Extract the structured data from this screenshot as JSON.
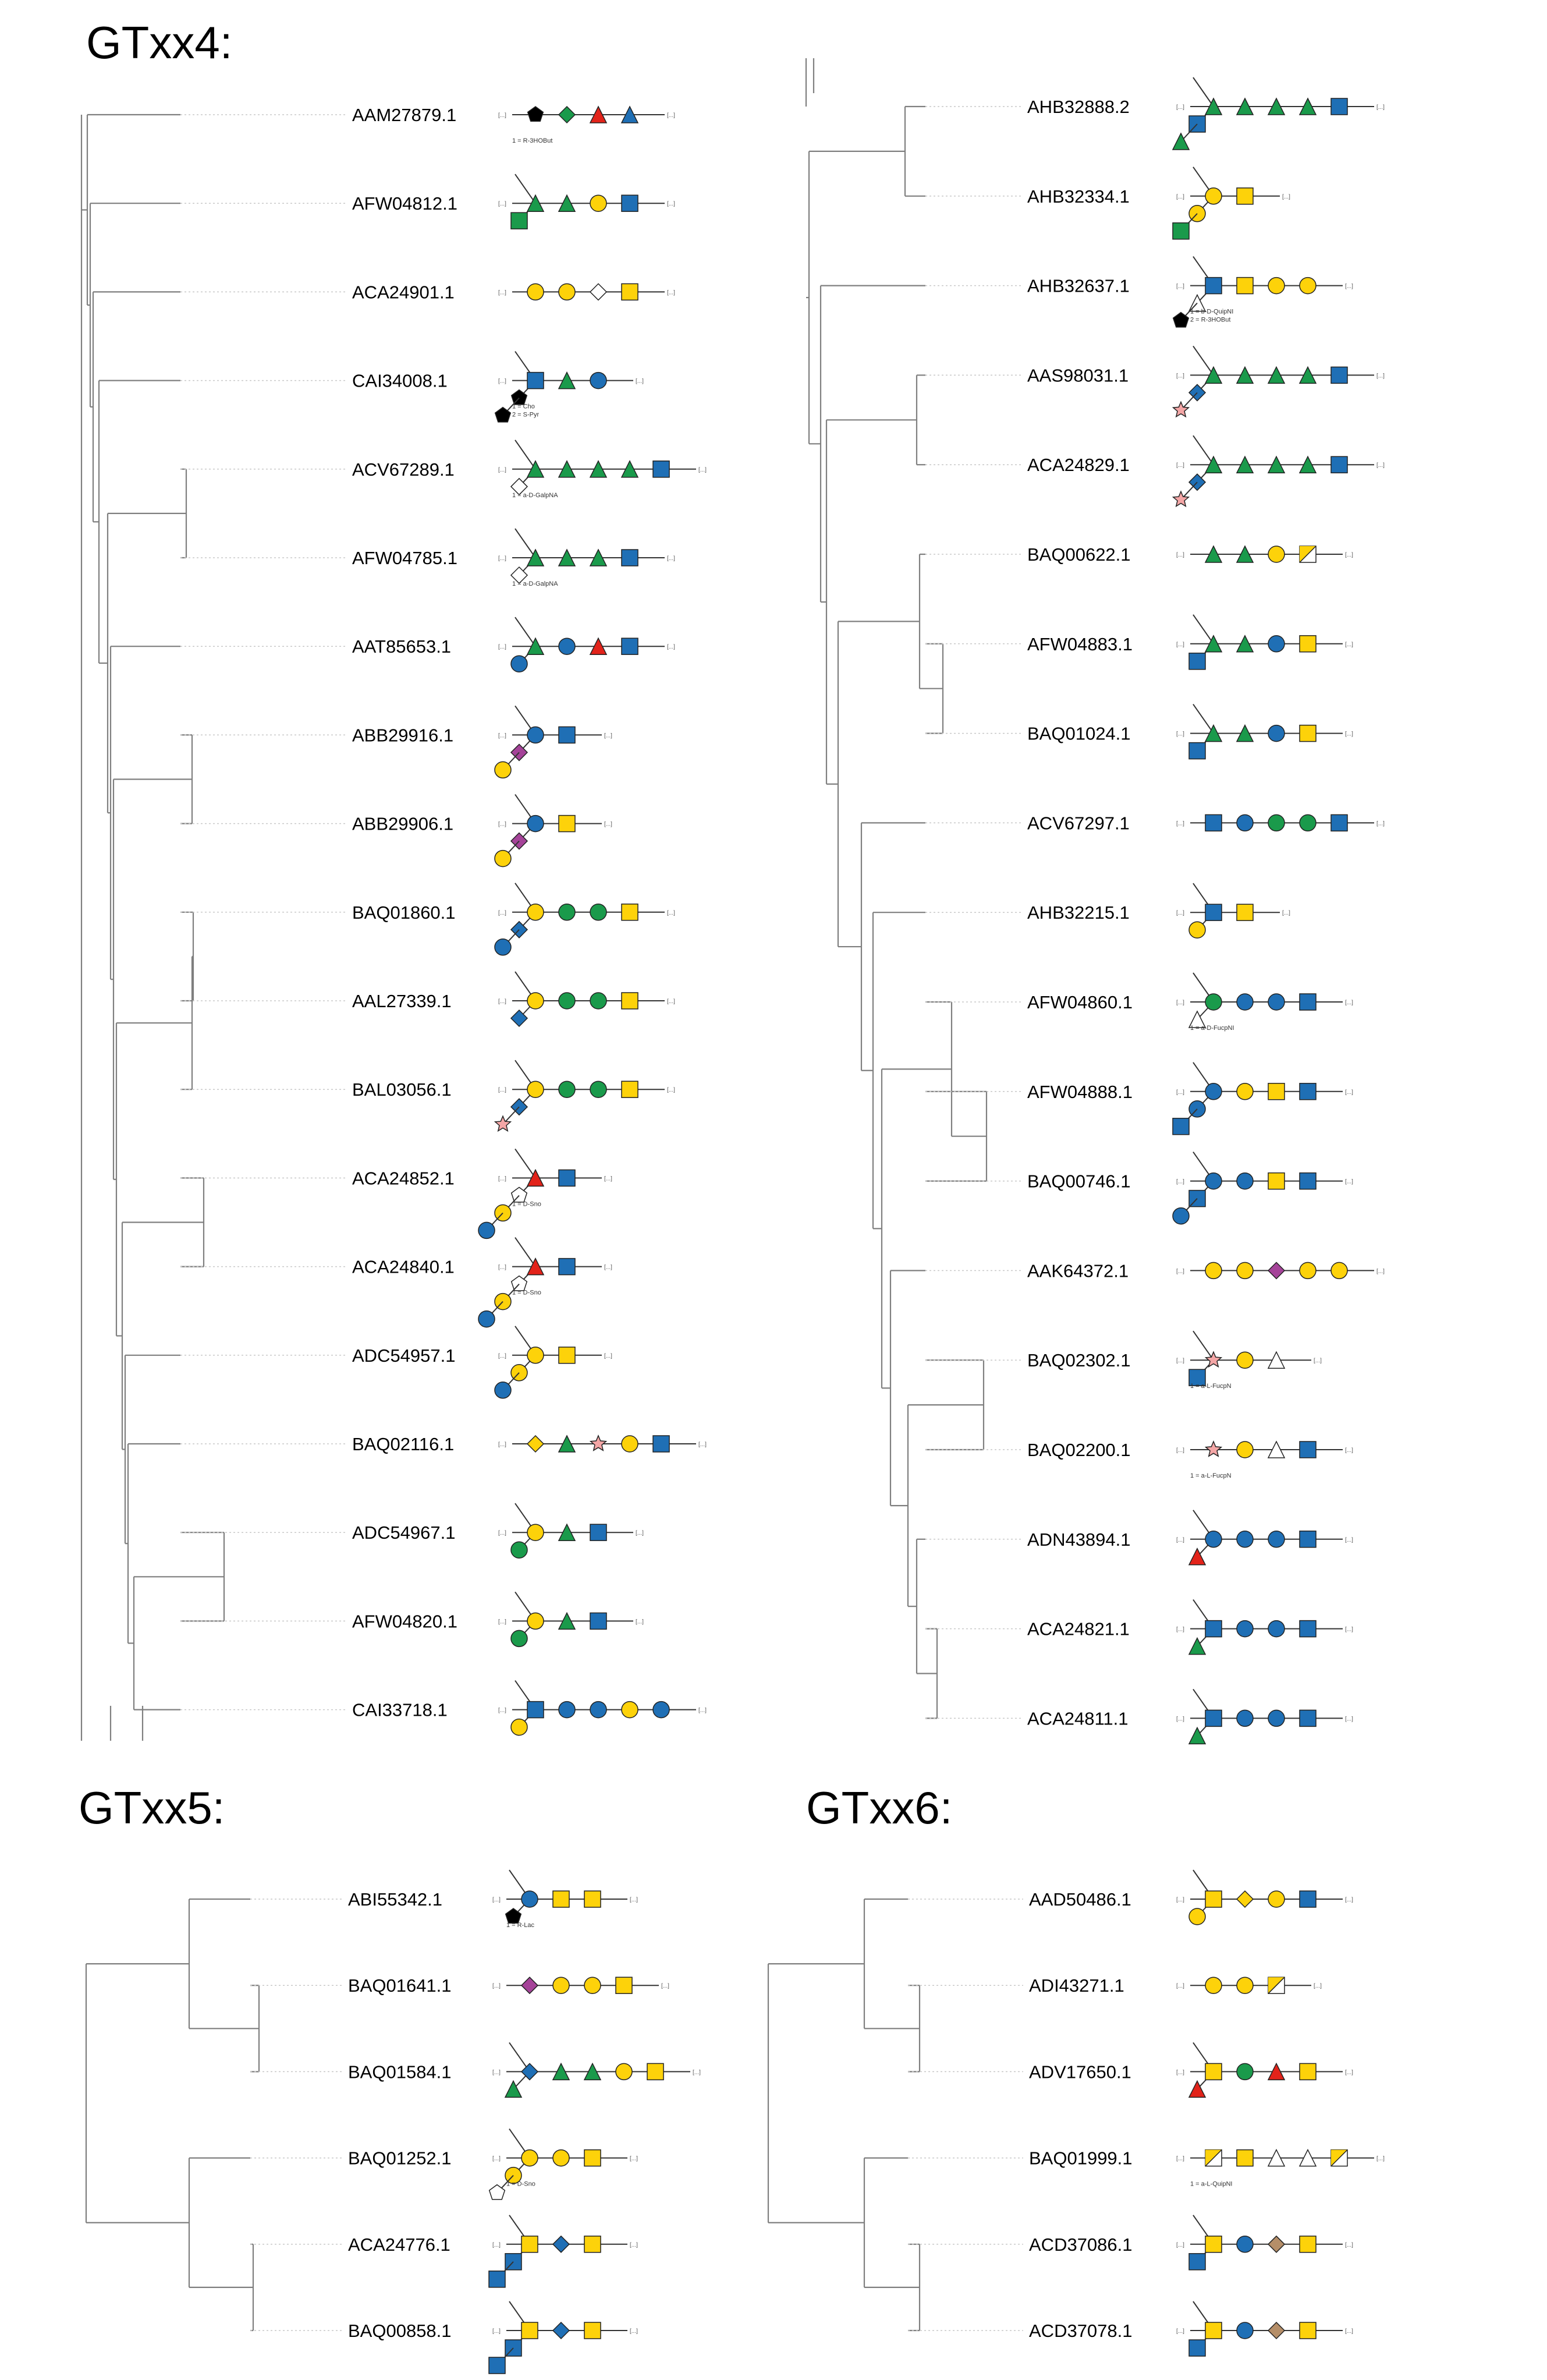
{
  "colors": {
    "branch": "#7f7f7f",
    "leader": "#c8c8c8",
    "line": "#333333",
    "blue": "#1f6fb5",
    "yellow": "#fdd20a",
    "green": "#1a9a4b",
    "red": "#e2231a",
    "purple": "#a54399",
    "pink": "#f4a6a6",
    "black": "#000000",
    "white": "#ffffff"
  },
  "panels": [
    {
      "title": "GTxx4:",
      "leaves": [
        {
          "label": "AAM27879.1",
          "glycan": [
            "pentagon-black",
            "diamond-green",
            "triangle-red",
            "triangle-blue"
          ],
          "note": "1 = R-3HOBut"
        },
        {
          "label": "AFW04812.1",
          "glycan": [
            "triangle-green",
            "triangle-green",
            "circle-yellow",
            "square-blue"
          ],
          "branch": [
            "square-green"
          ]
        },
        {
          "label": "ACA24901.1",
          "glycan": [
            "circle-yellow",
            "circle-yellow",
            "diamond-white",
            "square-yellow"
          ]
        },
        {
          "label": "CAI34008.1",
          "glycan": [
            "square-blue",
            "triangle-green",
            "circle-blue"
          ],
          "branch": [
            "pentagon-black",
            "pentagon-black"
          ],
          "note": "1 = Cho\n2 = S-Pyr"
        },
        {
          "label": "ACV67289.1",
          "glycan": [
            "triangle-green",
            "triangle-green",
            "triangle-green",
            "triangle-green",
            "square-blue"
          ],
          "branch": [
            "diamond-white"
          ],
          "note": "1 = a-D-GalpNA"
        },
        {
          "label": "AFW04785.1",
          "glycan": [
            "triangle-green",
            "triangle-green",
            "triangle-green",
            "square-blue"
          ],
          "branch": [
            "diamond-white"
          ],
          "note": "1 = a-D-GalpNA"
        },
        {
          "label": "AAT85653.1",
          "glycan": [
            "triangle-green",
            "circle-blue",
            "triangle-red",
            "square-blue"
          ],
          "branch": [
            "circle-blue"
          ]
        },
        {
          "label": "ABB29916.1",
          "glycan": [
            "circle-blue",
            "square-blue"
          ],
          "branch": [
            "diamond-purple",
            "circle-yellow"
          ]
        },
        {
          "label": "ABB29906.1",
          "glycan": [
            "circle-blue",
            "square-yellow"
          ],
          "branch": [
            "diamond-purple",
            "circle-yellow"
          ]
        },
        {
          "label": "BAQ01860.1",
          "glycan": [
            "circle-yellow",
            "circle-green",
            "circle-green",
            "square-yellow"
          ],
          "branch": [
            "diamond-blue",
            "circle-blue"
          ]
        },
        {
          "label": "AAL27339.1",
          "glycan": [
            "circle-yellow",
            "circle-green",
            "circle-green",
            "square-yellow"
          ],
          "branch": [
            "diamond-blue"
          ]
        },
        {
          "label": "BAL03056.1",
          "glycan": [
            "circle-yellow",
            "circle-green",
            "circle-green",
            "square-yellow"
          ],
          "branch": [
            "diamond-blue",
            "star-pink"
          ]
        },
        {
          "label": "ACA24852.1",
          "glycan": [
            "triangle-red",
            "square-blue"
          ],
          "branch": [
            "pentagon-white",
            "circle-yellow",
            "circle-blue"
          ],
          "note": "1 = D-Sno"
        },
        {
          "label": "ACA24840.1",
          "glycan": [
            "triangle-red",
            "square-blue"
          ],
          "branch": [
            "pentagon-white",
            "circle-yellow",
            "circle-blue"
          ],
          "note": "1 = D-Sno"
        },
        {
          "label": "ADC54957.1",
          "glycan": [
            "circle-yellow",
            "square-yellow"
          ],
          "branch": [
            "circle-yellow",
            "circle-blue"
          ]
        },
        {
          "label": "BAQ02116.1",
          "glycan": [
            "diamond-yellow",
            "triangle-green",
            "star-pink",
            "circle-yellow",
            "square-blue"
          ]
        },
        {
          "label": "ADC54967.1",
          "glycan": [
            "circle-yellow",
            "triangle-green",
            "square-blue"
          ],
          "branch": [
            "circle-green"
          ]
        },
        {
          "label": "AFW04820.1",
          "glycan": [
            "circle-yellow",
            "triangle-green",
            "square-blue"
          ],
          "branch": [
            "circle-green"
          ]
        },
        {
          "label": "CAI33718.1",
          "glycan": [
            "square-blue",
            "circle-blue",
            "circle-blue",
            "circle-yellow",
            "circle-blue"
          ],
          "branch": [
            "circle-yellow"
          ]
        }
      ]
    },
    {
      "title": "",
      "leaves": [
        {
          "label": "AHB32888.2",
          "glycan": [
            "triangle-green",
            "triangle-green",
            "triangle-green",
            "triangle-green",
            "square-blue"
          ],
          "branch": [
            "square-blue",
            "triangle-green"
          ]
        },
        {
          "label": "AHB32334.1",
          "glycan": [
            "circle-yellow",
            "square-yellow"
          ],
          "branch": [
            "circle-yellow",
            "square-green"
          ]
        },
        {
          "label": "AHB32637.1",
          "glycan": [
            "square-blue",
            "square-yellow",
            "circle-yellow",
            "circle-yellow"
          ],
          "branch": [
            "triangle-white",
            "pentagon-black"
          ],
          "note": "1 = b-D-QuipNI\n2 = R-3HOBut"
        },
        {
          "label": "AAS98031.1",
          "glycan": [
            "triangle-green",
            "triangle-green",
            "triangle-green",
            "triangle-green",
            "square-blue"
          ],
          "branch": [
            "diamond-blue",
            "star-pink"
          ]
        },
        {
          "label": "ACA24829.1",
          "glycan": [
            "triangle-green",
            "triangle-green",
            "triangle-green",
            "triangle-green",
            "square-blue"
          ],
          "branch": [
            "diamond-blue",
            "star-pink"
          ]
        },
        {
          "label": "BAQ00622.1",
          "glycan": [
            "triangle-green",
            "triangle-green",
            "circle-yellow",
            "square-half"
          ]
        },
        {
          "label": "AFW04883.1",
          "glycan": [
            "triangle-green",
            "triangle-green",
            "circle-blue",
            "square-yellow"
          ],
          "branch": [
            "square-blue"
          ]
        },
        {
          "label": "BAQ01024.1",
          "glycan": [
            "triangle-green",
            "triangle-green",
            "circle-blue",
            "square-yellow"
          ],
          "branch": [
            "square-blue"
          ]
        },
        {
          "label": "ACV67297.1",
          "glycan": [
            "square-blue",
            "circle-blue",
            "circle-green",
            "circle-green",
            "square-blue"
          ]
        },
        {
          "label": "AHB32215.1",
          "glycan": [
            "square-blue",
            "square-yellow"
          ],
          "branch": [
            "circle-yellow"
          ]
        },
        {
          "label": "AFW04860.1",
          "glycan": [
            "circle-green",
            "circle-blue",
            "circle-blue",
            "square-blue"
          ],
          "branch": [
            "triangle-white"
          ],
          "note": "1 = a-D-FucpNI"
        },
        {
          "label": "AFW04888.1",
          "glycan": [
            "circle-blue",
            "circle-yellow",
            "square-yellow",
            "square-blue"
          ],
          "branch": [
            "circle-blue",
            "square-blue"
          ]
        },
        {
          "label": "BAQ00746.1",
          "glycan": [
            "circle-blue",
            "circle-blue",
            "square-yellow",
            "square-blue"
          ],
          "branch": [
            "square-blue",
            "circle-blue"
          ]
        },
        {
          "label": "AAK64372.1",
          "glycan": [
            "circle-yellow",
            "circle-yellow",
            "diamond-purple",
            "circle-yellow",
            "circle-yellow"
          ]
        },
        {
          "label": "BAQ02302.1",
          "glycan": [
            "star-pink",
            "circle-yellow",
            "triangle-white"
          ],
          "branch": [
            "square-blue"
          ],
          "note": "1 = a-L-FucpN"
        },
        {
          "label": "BAQ02200.1",
          "glycan": [
            "star-pink",
            "circle-yellow",
            "triangle-white",
            "square-blue"
          ],
          "note": "1 = a-L-FucpN"
        },
        {
          "label": "ADN43894.1",
          "glycan": [
            "circle-blue",
            "circle-blue",
            "circle-blue",
            "square-blue"
          ],
          "branch": [
            "triangle-red"
          ]
        },
        {
          "label": "ACA24821.1",
          "glycan": [
            "square-blue",
            "circle-blue",
            "circle-blue",
            "square-blue"
          ],
          "branch": [
            "triangle-green"
          ]
        },
        {
          "label": "ACA24811.1",
          "glycan": [
            "square-blue",
            "circle-blue",
            "circle-blue",
            "square-blue"
          ],
          "branch": [
            "triangle-green"
          ]
        }
      ]
    },
    {
      "title": "GTxx5:",
      "leaves": [
        {
          "label": "ABI55342.1",
          "glycan": [
            "circle-blue",
            "square-yellow",
            "square-yellow"
          ],
          "branch": [
            "pentagon-black"
          ],
          "note": "1 = R-Lac"
        },
        {
          "label": "BAQ01641.1",
          "glycan": [
            "diamond-purple",
            "circle-yellow",
            "circle-yellow",
            "square-yellow"
          ]
        },
        {
          "label": "BAQ01584.1",
          "glycan": [
            "diamond-blue",
            "triangle-green",
            "triangle-green",
            "circle-yellow",
            "square-yellow"
          ],
          "branch": [
            "triangle-green"
          ]
        },
        {
          "label": "BAQ01252.1",
          "glycan": [
            "circle-yellow",
            "circle-yellow",
            "square-yellow"
          ],
          "branch": [
            "circle-yellow",
            "pentagon-white"
          ],
          "note": "1 = D-Sno"
        },
        {
          "label": "ACA24776.1",
          "glycan": [
            "square-yellow",
            "diamond-blue",
            "square-yellow"
          ],
          "branch": [
            "square-blue",
            "square-blue"
          ]
        },
        {
          "label": "BAQ00858.1",
          "glycan": [
            "square-yellow",
            "diamond-blue",
            "square-yellow"
          ],
          "branch": [
            "square-blue",
            "square-blue"
          ]
        }
      ]
    },
    {
      "title": "GTxx6:",
      "leaves": [
        {
          "label": "AAD50486.1",
          "glycan": [
            "square-yellow",
            "diamond-yellow",
            "circle-yellow",
            "square-blue"
          ],
          "branch": [
            "circle-yellow"
          ]
        },
        {
          "label": "ADI43271.1",
          "glycan": [
            "circle-yellow",
            "circle-yellow",
            "square-half"
          ]
        },
        {
          "label": "ADV17650.1",
          "glycan": [
            "square-yellow",
            "circle-green",
            "triangle-red",
            "square-yellow"
          ],
          "branch": [
            "triangle-red"
          ]
        },
        {
          "label": "BAQ01999.1",
          "glycan": [
            "square-half",
            "square-yellow",
            "triangle-white",
            "triangle-white",
            "square-half"
          ],
          "note": "1 = a-L-QuipNI"
        },
        {
          "label": "ACD37086.1",
          "glycan": [
            "square-yellow",
            "circle-blue",
            "diamond-brown",
            "square-yellow"
          ],
          "branch": [
            "square-blue"
          ]
        },
        {
          "label": "ACD37078.1",
          "glycan": [
            "square-yellow",
            "circle-blue",
            "diamond-brown",
            "square-yellow"
          ],
          "branch": [
            "square-blue"
          ]
        }
      ]
    }
  ]
}
